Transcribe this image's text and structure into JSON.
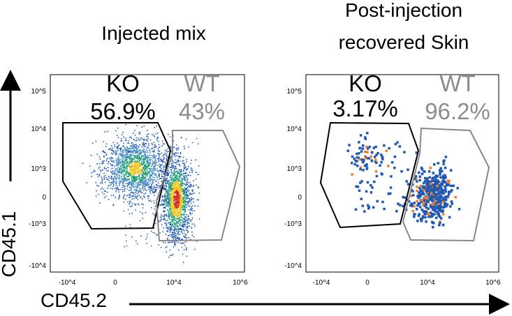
{
  "figure": {
    "x_axis_label": "CD45.2",
    "y_axis_label": "CD45.1"
  },
  "colors": {
    "ko_gate": "#000000",
    "wt_gate": "#8c8c8c",
    "dense_core": "#d7261e",
    "mid_density": "#f2c41c",
    "low_density": "#22a07a",
    "sparse": "#1f57b4",
    "orange_event": "#f07f2a"
  },
  "chart_data": [
    {
      "type": "scatter",
      "title": "Injected mix",
      "xlabel": "CD45.2",
      "ylabel": "CD45.1",
      "x_ticks": [
        "-10^4",
        "0",
        "10^4",
        "10^6"
      ],
      "y_ticks": [
        "10^5",
        "10^4",
        "10^3",
        "0",
        "-10^3",
        "-10^4"
      ],
      "gates": [
        {
          "name": "KO",
          "label": "KO",
          "percent": "56.9%"
        },
        {
          "name": "WT",
          "label": "WT",
          "percent": "43%"
        }
      ],
      "populations": [
        {
          "gate": "KO",
          "center_x": 900,
          "center_y": 1200,
          "shape": "dense density cloud"
        },
        {
          "gate": "WT",
          "center_x": 12000,
          "center_y": 0,
          "shape": "dense vertical density cloud"
        }
      ]
    },
    {
      "type": "scatter",
      "title": "Post-injection recovered Skin",
      "xlabel": "CD45.2",
      "ylabel": "CD45.1",
      "x_ticks": [
        "-10^4",
        "0",
        "10^4",
        "10^6"
      ],
      "y_ticks": [
        "10^5",
        "10^4",
        "10^3",
        "0",
        "-10^3",
        "-10^4"
      ],
      "gates": [
        {
          "name": "KO",
          "label": "KO",
          "percent": "3.17%"
        },
        {
          "name": "WT",
          "label": "WT",
          "percent": "96.2%"
        }
      ],
      "populations": [
        {
          "gate": "KO",
          "center_x": 0,
          "center_y": 3000,
          "shape": "small sparse cluster"
        },
        {
          "gate": "WT",
          "center_x": 12000,
          "center_y": 0,
          "shape": "dense cluster of discrete events"
        }
      ]
    }
  ]
}
